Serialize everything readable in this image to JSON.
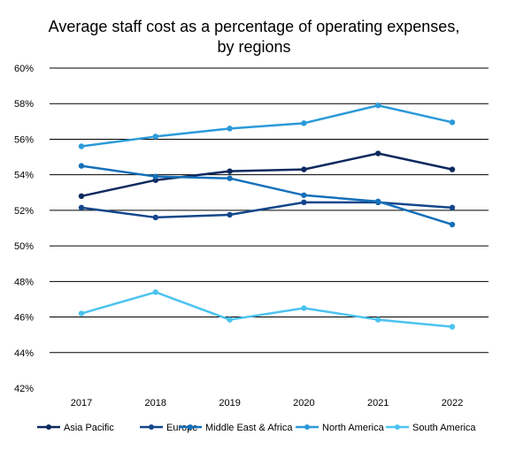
{
  "chart_data": {
    "type": "line",
    "title": "Average staff cost as a percentage of operating expenses, by regions",
    "title_lines": [
      "Average staff cost as a percentage of operating expenses,",
      "by regions"
    ],
    "xlabel": "",
    "ylabel": "",
    "categories": [
      "2017",
      "2018",
      "2019",
      "2020",
      "2021",
      "2022"
    ],
    "ylim": [
      42,
      60
    ],
    "yticks": [
      42,
      44,
      46,
      48,
      50,
      52,
      54,
      56,
      58,
      60
    ],
    "ytick_labels": [
      "42%",
      "44%",
      "46%",
      "48%",
      "50%",
      "52%",
      "54%",
      "56%",
      "58%",
      "60%"
    ],
    "grid": "horizontal",
    "legend_position": "bottom",
    "series": [
      {
        "name": "Asia Pacific",
        "color": "#0d2a5e",
        "values": [
          52.8,
          53.7,
          54.2,
          54.3,
          55.2,
          54.3
        ]
      },
      {
        "name": "Europe",
        "color": "#14468c",
        "values": [
          52.15,
          51.6,
          51.75,
          52.45,
          52.45,
          52.15
        ]
      },
      {
        "name": "Middle East & Africa",
        "color": "#1570ba",
        "values": [
          54.5,
          53.9,
          53.8,
          52.85,
          52.5,
          51.2
        ]
      },
      {
        "name": "North America",
        "color": "#2b9ad9",
        "values": [
          55.6,
          56.15,
          56.6,
          56.9,
          57.9,
          56.95
        ]
      },
      {
        "name": "South America",
        "color": "#4cc3f0",
        "values": [
          46.2,
          47.4,
          45.85,
          46.5,
          45.85,
          45.45
        ]
      }
    ]
  }
}
